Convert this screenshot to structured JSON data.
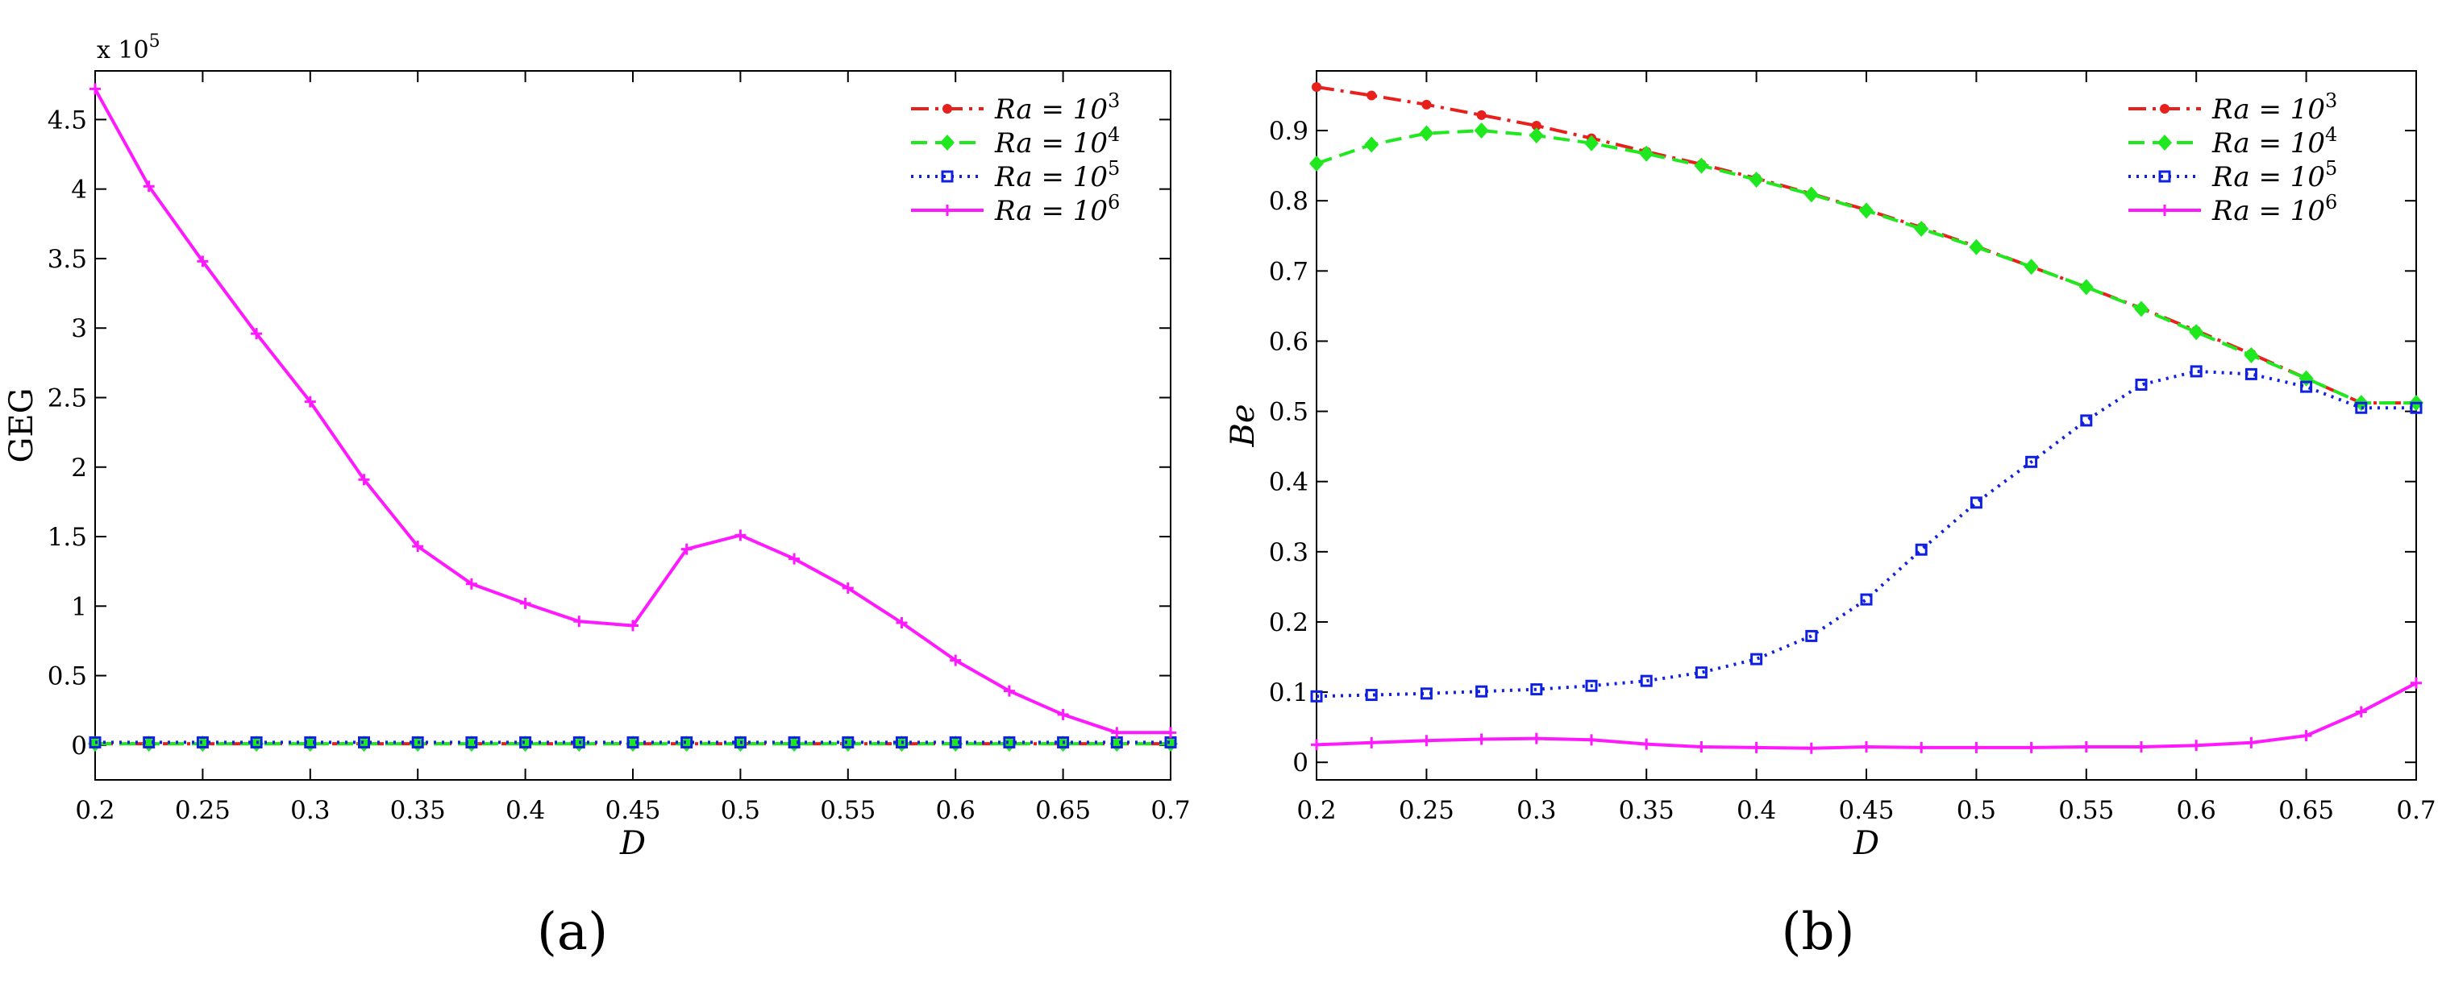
{
  "chart_data": [
    {
      "type": "line",
      "panel_label": "(a)",
      "title": "",
      "xlabel": "D",
      "ylabel": "GEG",
      "y_scale_note": {
        "prefix": "x 10",
        "exponent": "5"
      },
      "xlim": [
        0.2,
        0.7
      ],
      "ylim": [
        -0.25,
        4.85
      ],
      "xticks": [
        "0.2",
        "0.25",
        "0.3",
        "0.35",
        "0.4",
        "0.45",
        "0.5",
        "0.55",
        "0.6",
        "0.65",
        "0.7"
      ],
      "xtick_values": [
        0.2,
        0.25,
        0.3,
        0.35,
        0.4,
        0.45,
        0.5,
        0.55,
        0.6,
        0.65,
        0.7
      ],
      "yticks": [
        "0",
        "0.5",
        "1",
        "1.5",
        "2",
        "2.5",
        "3",
        "3.5",
        "4",
        "4.5"
      ],
      "ytick_values": [
        0,
        0.5,
        1,
        1.5,
        2,
        2.5,
        3,
        3.5,
        4,
        4.5
      ],
      "legend_position": "top-right",
      "x": [
        0.2,
        0.225,
        0.25,
        0.275,
        0.3,
        0.325,
        0.35,
        0.375,
        0.4,
        0.425,
        0.45,
        0.475,
        0.5,
        0.525,
        0.55,
        0.575,
        0.6,
        0.625,
        0.65,
        0.675,
        0.7
      ],
      "series": [
        {
          "name": "Ra = 10^3",
          "legend_base": "Ra = 10",
          "legend_exp": "3",
          "color": "#e8201c",
          "dash": "22,8,4,8",
          "marker": "dot",
          "values": [
            0.01,
            0.01,
            0.01,
            0.01,
            0.01,
            0.01,
            0.01,
            0.01,
            0.01,
            0.01,
            0.01,
            0.01,
            0.01,
            0.01,
            0.01,
            0.01,
            0.01,
            0.01,
            0.01,
            0.01,
            0.01
          ]
        },
        {
          "name": "Ra = 10^4",
          "legend_base": "Ra = 10",
          "legend_exp": "4",
          "color": "#1fe81f",
          "dash": "20,10",
          "marker": "diamond",
          "values": [
            0.01,
            0.01,
            0.01,
            0.01,
            0.01,
            0.01,
            0.01,
            0.01,
            0.01,
            0.01,
            0.01,
            0.01,
            0.01,
            0.01,
            0.01,
            0.01,
            0.01,
            0.01,
            0.01,
            0.01,
            0.01
          ]
        },
        {
          "name": "Ra = 10^5",
          "legend_base": "Ra = 10",
          "legend_exp": "5",
          "color": "#1020e0",
          "dash": "3,7",
          "marker": "square",
          "values": [
            0.02,
            0.02,
            0.02,
            0.02,
            0.02,
            0.02,
            0.02,
            0.02,
            0.02,
            0.02,
            0.02,
            0.02,
            0.02,
            0.02,
            0.02,
            0.02,
            0.02,
            0.02,
            0.02,
            0.02,
            0.02
          ]
        },
        {
          "name": "Ra = 10^6",
          "legend_base": "Ra = 10",
          "legend_exp": "6",
          "color": "#ff19ff",
          "dash": "",
          "marker": "plus",
          "values": [
            4.72,
            4.02,
            3.48,
            2.96,
            2.47,
            1.91,
            1.43,
            1.16,
            1.02,
            0.89,
            0.86,
            1.41,
            1.51,
            1.34,
            1.13,
            0.88,
            0.61,
            0.39,
            0.22,
            0.09,
            0.09
          ]
        }
      ]
    },
    {
      "type": "line",
      "panel_label": "(b)",
      "title": "",
      "xlabel": "D",
      "ylabel": "Be",
      "xlim": [
        0.2,
        0.7
      ],
      "ylim": [
        -0.025,
        0.985
      ],
      "xticks": [
        "0.2",
        "0.25",
        "0.3",
        "0.35",
        "0.4",
        "0.45",
        "0.5",
        "0.55",
        "0.6",
        "0.65",
        "0.7"
      ],
      "xtick_values": [
        0.2,
        0.25,
        0.3,
        0.35,
        0.4,
        0.45,
        0.5,
        0.55,
        0.6,
        0.65,
        0.7
      ],
      "yticks": [
        "0",
        "0.1",
        "0.2",
        "0.3",
        "0.4",
        "0.5",
        "0.6",
        "0.7",
        "0.8",
        "0.9"
      ],
      "ytick_values": [
        0,
        0.1,
        0.2,
        0.3,
        0.4,
        0.5,
        0.6,
        0.7,
        0.8,
        0.9
      ],
      "legend_position": "top-right",
      "x": [
        0.2,
        0.225,
        0.25,
        0.275,
        0.3,
        0.325,
        0.35,
        0.375,
        0.4,
        0.425,
        0.45,
        0.475,
        0.5,
        0.525,
        0.55,
        0.575,
        0.6,
        0.625,
        0.65,
        0.675,
        0.7
      ],
      "series": [
        {
          "name": "Ra = 10^3",
          "legend_base": "Ra = 10",
          "legend_exp": "3",
          "color": "#e8201c",
          "dash": "22,8,4,8",
          "marker": "dot",
          "values": [
            0.962,
            0.95,
            0.937,
            0.922,
            0.907,
            0.889,
            0.87,
            0.852,
            0.832,
            0.81,
            0.787,
            0.762,
            0.735,
            0.706,
            0.677,
            0.647,
            0.615,
            0.582,
            0.547,
            0.512,
            0.512
          ]
        },
        {
          "name": "Ra = 10^4",
          "legend_base": "Ra = 10",
          "legend_exp": "4",
          "color": "#1fe81f",
          "dash": "20,10",
          "marker": "diamond",
          "values": [
            0.853,
            0.88,
            0.896,
            0.9,
            0.893,
            0.882,
            0.867,
            0.85,
            0.83,
            0.809,
            0.786,
            0.76,
            0.734,
            0.706,
            0.677,
            0.646,
            0.613,
            0.58,
            0.547,
            0.512,
            0.512
          ]
        },
        {
          "name": "Ra = 10^5",
          "legend_base": "Ra = 10",
          "legend_exp": "5",
          "color": "#1020e0",
          "dash": "3,7",
          "marker": "square",
          "values": [
            0.094,
            0.096,
            0.098,
            0.101,
            0.104,
            0.109,
            0.116,
            0.128,
            0.147,
            0.18,
            0.232,
            0.303,
            0.37,
            0.428,
            0.487,
            0.538,
            0.557,
            0.553,
            0.535,
            0.505,
            0.505
          ]
        },
        {
          "name": "Ra = 10^6",
          "legend_base": "Ra = 10",
          "legend_exp": "6",
          "color": "#ff19ff",
          "dash": "",
          "marker": "plus",
          "values": [
            0.025,
            0.028,
            0.031,
            0.033,
            0.034,
            0.032,
            0.026,
            0.022,
            0.021,
            0.02,
            0.022,
            0.021,
            0.021,
            0.021,
            0.022,
            0.022,
            0.024,
            0.028,
            0.038,
            0.072,
            0.113
          ]
        }
      ]
    }
  ]
}
